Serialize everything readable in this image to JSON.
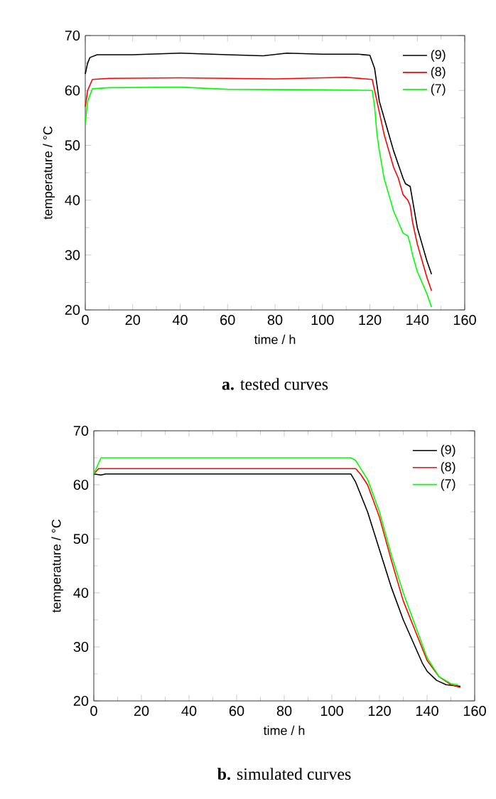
{
  "chart_data": [
    {
      "type": "line",
      "xlabel": "time / h",
      "ylabel": "temperature / °C",
      "xlim": [
        0,
        160
      ],
      "ylim": [
        20,
        70
      ],
      "xticks": [
        0,
        20,
        40,
        60,
        80,
        100,
        120,
        140,
        160
      ],
      "yticks": [
        20,
        30,
        40,
        50,
        60,
        70
      ],
      "legend": "top right",
      "grid": false,
      "annotations": [
        "**a.** tested curves"
      ],
      "series": [
        {
          "name": "(9)",
          "color": "#000000",
          "x": [
            0,
            1,
            2,
            5,
            20,
            40,
            60,
            75,
            85,
            100,
            115,
            120,
            122,
            124,
            126,
            128,
            130,
            132,
            134,
            135,
            137,
            138,
            140,
            142,
            144,
            146
          ],
          "values": [
            63,
            65,
            66,
            66.5,
            66.5,
            66.8,
            66.5,
            66.3,
            66.8,
            66.6,
            66.6,
            66.4,
            64,
            58,
            55,
            52,
            49,
            46.5,
            44,
            43,
            42.5,
            40,
            35,
            32,
            29,
            26.5
          ]
        },
        {
          "name": "(8)",
          "color": "#ff0000",
          "x": [
            0,
            1,
            3,
            10,
            40,
            80,
            110,
            121,
            122,
            124,
            126,
            128,
            130,
            132,
            134,
            136,
            137,
            138,
            140,
            142,
            144,
            146
          ],
          "values": [
            57,
            60,
            62,
            62.2,
            62.3,
            62.1,
            62.4,
            62,
            60,
            56,
            52,
            49,
            46,
            44,
            41,
            40,
            39,
            36,
            32,
            29,
            26,
            23.5
          ]
        },
        {
          "name": "(7)",
          "color": "#00ff00",
          "x": [
            0,
            1,
            3,
            10,
            40,
            60,
            100,
            121,
            122,
            123,
            124,
            126,
            128,
            130,
            132,
            134,
            136,
            137,
            138,
            140,
            142,
            144,
            146
          ],
          "values": [
            54,
            58,
            60.3,
            60.5,
            60.6,
            60.2,
            60.1,
            60,
            57,
            52,
            49,
            44,
            41,
            38,
            36,
            34,
            33.5,
            32,
            30,
            27,
            25,
            23,
            20.5
          ]
        }
      ]
    },
    {
      "type": "line",
      "xlabel": "time / h",
      "ylabel": "temperature / °C",
      "xlim": [
        0,
        160
      ],
      "ylim": [
        20,
        70
      ],
      "xticks": [
        0,
        20,
        40,
        60,
        80,
        100,
        120,
        140,
        160
      ],
      "yticks": [
        20,
        30,
        40,
        50,
        60,
        70
      ],
      "legend": "top right",
      "grid": false,
      "annotations": [
        "**b.** simulated curves"
      ],
      "series": [
        {
          "name": "(9)",
          "color": "#000000",
          "x": [
            0,
            3,
            5,
            108,
            110,
            115,
            120,
            125,
            130,
            135,
            138,
            140,
            144,
            148,
            152,
            154
          ],
          "values": [
            62,
            61.8,
            62,
            62,
            60.5,
            55,
            48,
            41,
            35,
            30,
            27,
            25.5,
            23.8,
            23,
            22.8,
            22.7
          ]
        },
        {
          "name": "(8)",
          "color": "#ff0000",
          "x": [
            0,
            2,
            110,
            112,
            115,
            120,
            125,
            130,
            135,
            140,
            145,
            150,
            154
          ],
          "values": [
            62,
            63,
            63,
            62,
            60,
            54,
            46,
            38.5,
            33,
            27.5,
            24.5,
            23,
            22.5
          ]
        },
        {
          "name": "(7)",
          "color": "#00ff00",
          "x": [
            0,
            3,
            108,
            110,
            115,
            120,
            125,
            130,
            135,
            140,
            145,
            150,
            153
          ],
          "values": [
            62,
            65,
            65,
            64.5,
            61,
            55,
            47,
            40,
            34,
            28,
            24.5,
            23.2,
            23
          ]
        }
      ]
    }
  ]
}
